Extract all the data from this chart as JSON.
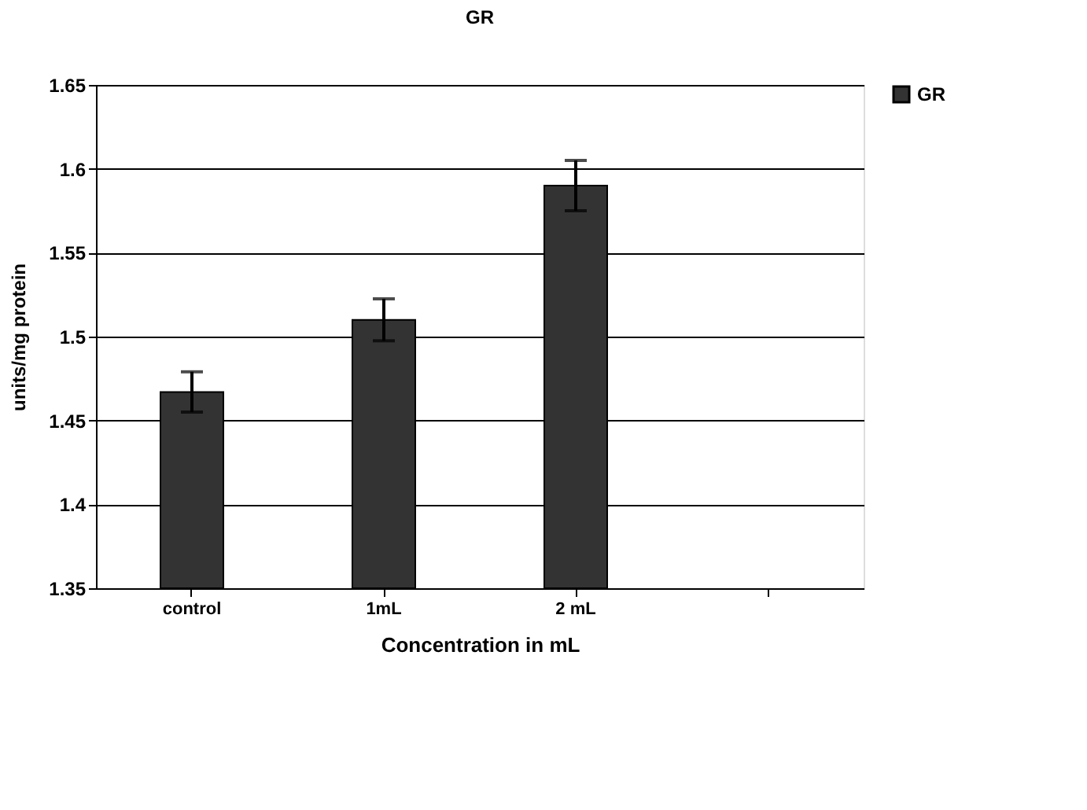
{
  "chart_data": {
    "type": "bar",
    "title": "GR",
    "xlabel": "Concentration in mL",
    "ylabel": "units/mg protein",
    "categories": [
      "control",
      "1mL",
      "2 mL",
      null
    ],
    "series": [
      {
        "name": "GR",
        "color": "#333333",
        "values": [
          1.467,
          1.51,
          1.59,
          null
        ],
        "errors": [
          0.012,
          0.0125,
          0.015,
          null
        ]
      }
    ],
    "ylim": [
      1.35,
      1.65
    ],
    "yticks": [
      1.35,
      1.4,
      1.45,
      1.5,
      1.55,
      1.6,
      1.65
    ],
    "grid": "y",
    "legend": "right"
  }
}
